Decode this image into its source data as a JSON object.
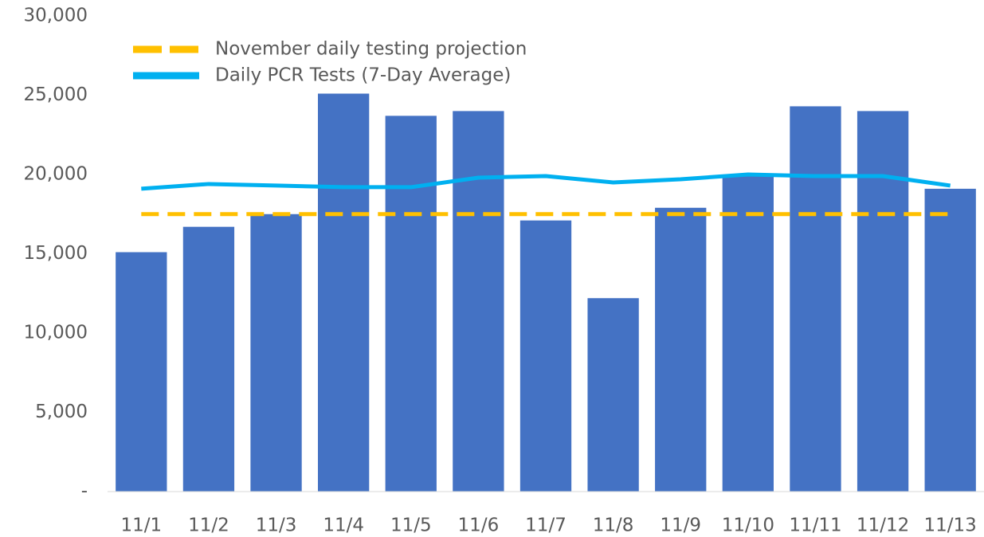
{
  "chart_data": {
    "type": "bar",
    "categories": [
      "11/1",
      "11/2",
      "11/3",
      "11/4",
      "11/5",
      "11/6",
      "11/7",
      "11/8",
      "11/9",
      "11/10",
      "11/11",
      "11/12",
      "11/13"
    ],
    "values": [
      15100,
      16700,
      17500,
      25100,
      23700,
      24000,
      17100,
      12200,
      17900,
      20000,
      24300,
      24000,
      19100
    ],
    "color": "#4472c4",
    "series": [
      {
        "name": "November daily testing projection",
        "color": "#ffc000",
        "dashed": true,
        "values": [
          17500,
          17500,
          17500,
          17500,
          17500,
          17500,
          17500,
          17500,
          17500,
          17500,
          17500,
          17500,
          17500
        ]
      },
      {
        "name": "Daily PCR Tests (7-Day Average)",
        "color": "#00b0f0",
        "dashed": false,
        "values": [
          19100,
          19400,
          19300,
          19200,
          19200,
          19800,
          19900,
          19500,
          19700,
          20000,
          19900,
          19900,
          19300
        ]
      }
    ],
    "ylim": [
      0,
      30000
    ],
    "yticks": [
      {
        "value": 0,
        "label": "-"
      },
      {
        "value": 5000,
        "label": "5,000"
      },
      {
        "value": 10000,
        "label": "10,000"
      },
      {
        "value": 15000,
        "label": "15,000"
      },
      {
        "value": 20000,
        "label": "20,000"
      },
      {
        "value": 25000,
        "label": "25,000"
      },
      {
        "value": 30000,
        "label": "30,000"
      }
    ],
    "legend": "top-left",
    "grid": false
  }
}
